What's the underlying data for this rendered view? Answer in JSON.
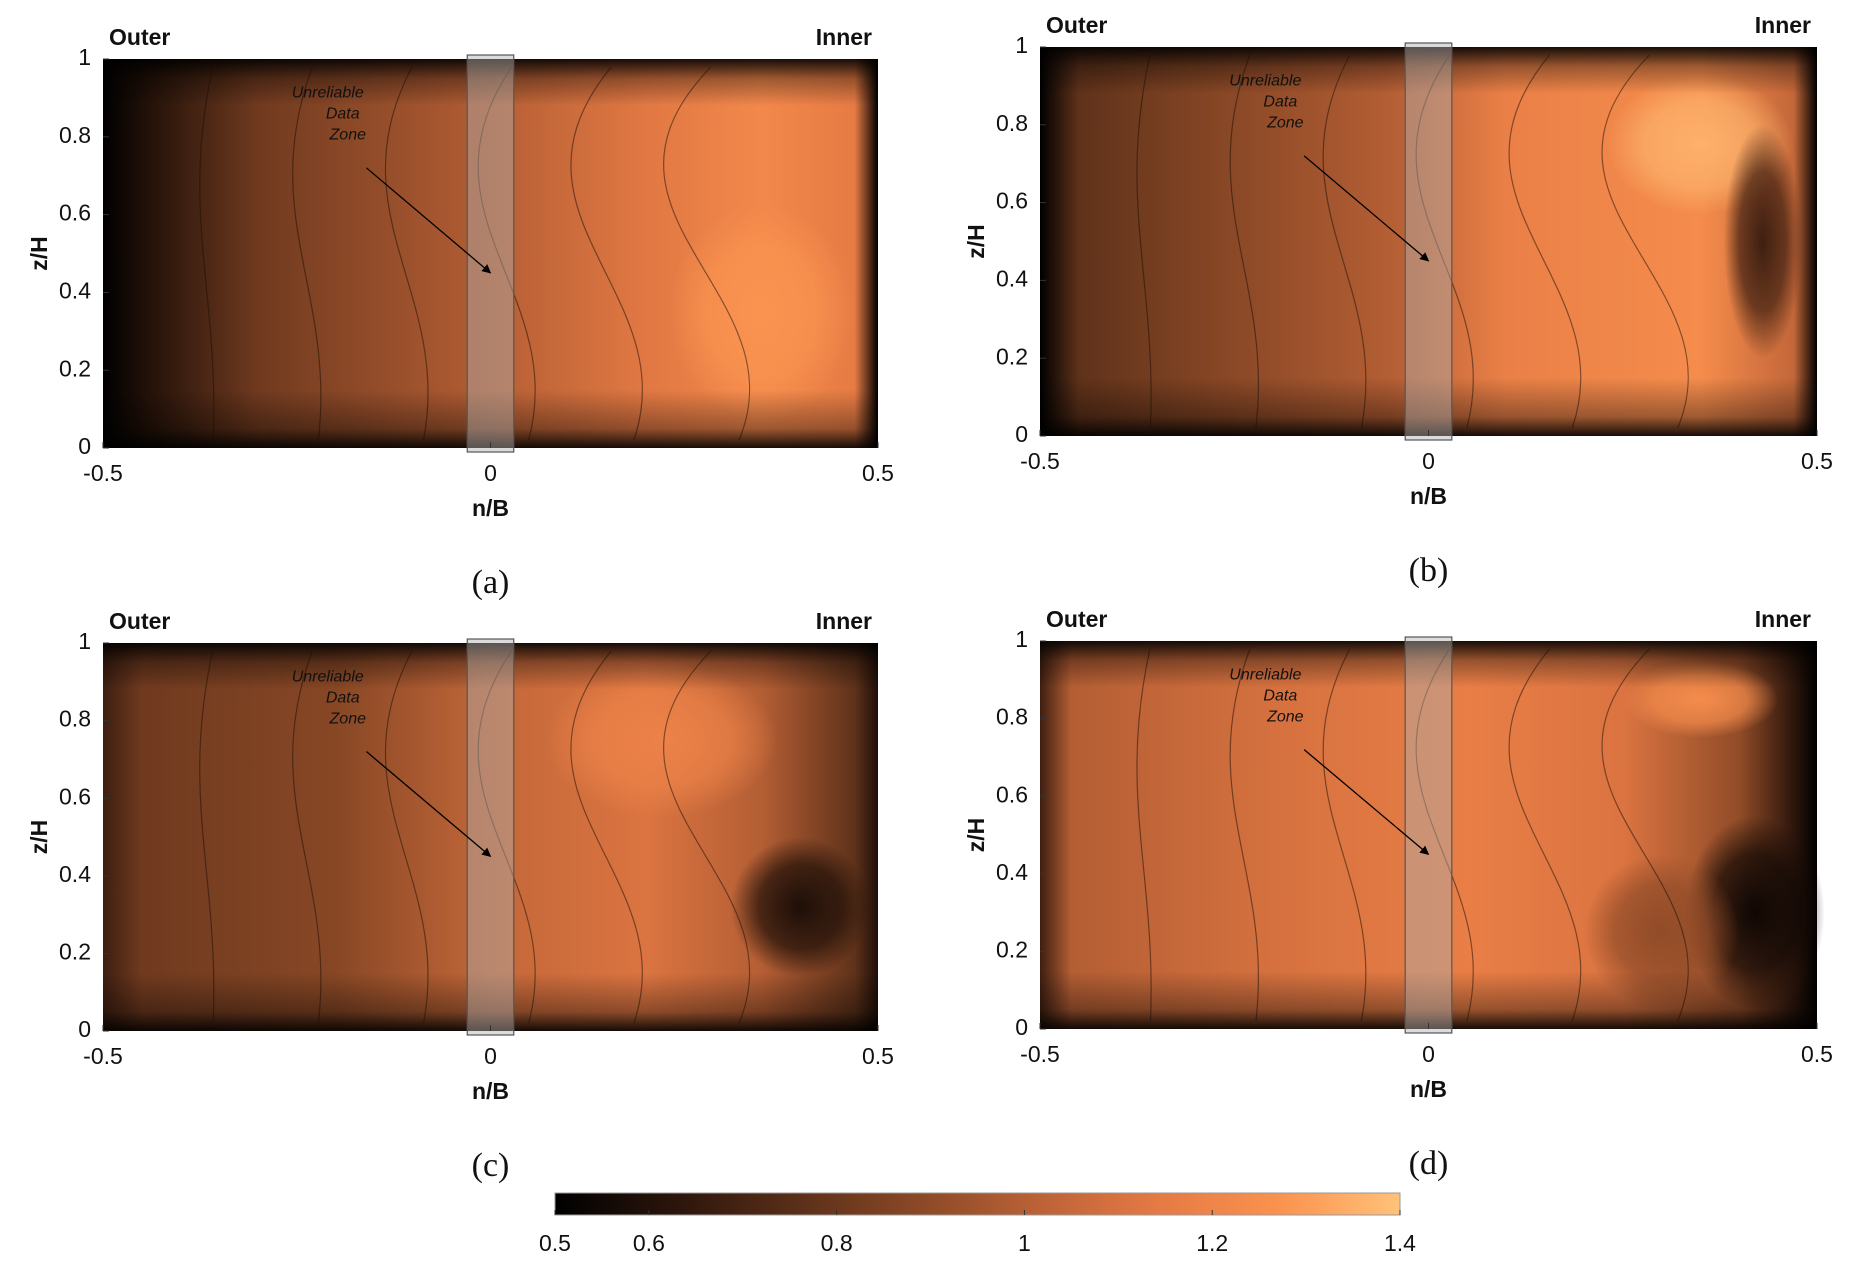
{
  "chart_data": [
    {
      "type": "contour",
      "panel_label": "(a)",
      "left_label": "Outer",
      "right_label": "Inner",
      "annotation": [
        "Unreliable",
        "Data",
        "Zone"
      ],
      "xlabel": "n/B",
      "ylabel": "z/H",
      "xlim": [
        -0.5,
        0.5
      ],
      "xticks": [
        -0.5,
        0,
        0.5
      ],
      "ylim": [
        0,
        1
      ],
      "yticks": [
        0,
        0.2,
        0.4,
        0.6,
        0.8,
        1
      ],
      "unreliable_band": [
        -0.03,
        0.03
      ]
    },
    {
      "type": "contour",
      "panel_label": "(b)",
      "left_label": "Outer",
      "right_label": "Inner",
      "annotation": [
        "Unreliable",
        "Data",
        "Zone"
      ],
      "xlabel": "n/B",
      "ylabel": "z/H",
      "xlim": [
        -0.5,
        0.5
      ],
      "xticks": [
        -0.5,
        0,
        0.5
      ],
      "ylim": [
        0,
        1
      ],
      "yticks": [
        0,
        0.2,
        0.4,
        0.6,
        0.8,
        1
      ],
      "unreliable_band": [
        -0.03,
        0.03
      ]
    },
    {
      "type": "contour",
      "panel_label": "(c)",
      "left_label": "Outer",
      "right_label": "Inner",
      "annotation": [
        "Unreliable",
        "Data",
        "Zone"
      ],
      "xlabel": "n/B",
      "ylabel": "z/H",
      "xlim": [
        -0.5,
        0.5
      ],
      "xticks": [
        -0.5,
        0,
        0.5
      ],
      "ylim": [
        0,
        1
      ],
      "yticks": [
        0,
        0.2,
        0.4,
        0.6,
        0.8,
        1
      ],
      "unreliable_band": [
        -0.03,
        0.03
      ]
    },
    {
      "type": "contour",
      "panel_label": "(d)",
      "left_label": "Outer",
      "right_label": "Inner",
      "annotation": [
        "Unreliable",
        "Data",
        "Zone"
      ],
      "xlabel": "n/B",
      "ylabel": "z/H",
      "xlim": [
        -0.5,
        0.5
      ],
      "xticks": [
        -0.5,
        0,
        0.5
      ],
      "ylim": [
        0,
        1
      ],
      "yticks": [
        0,
        0.2,
        0.4,
        0.6,
        0.8,
        1
      ],
      "unreliable_band": [
        -0.03,
        0.03
      ]
    },
    {
      "type": "colorbar",
      "colormap": [
        "#000000",
        "#2b150b",
        "#5a2f19",
        "#8a4826",
        "#bb6236",
        "#e57a44",
        "#fa924f",
        "#ffc27a"
      ],
      "clim": [
        0.5,
        1.4
      ],
      "cticks": [
        0.5,
        0.6,
        0.8,
        1,
        1.2,
        1.4
      ]
    }
  ]
}
